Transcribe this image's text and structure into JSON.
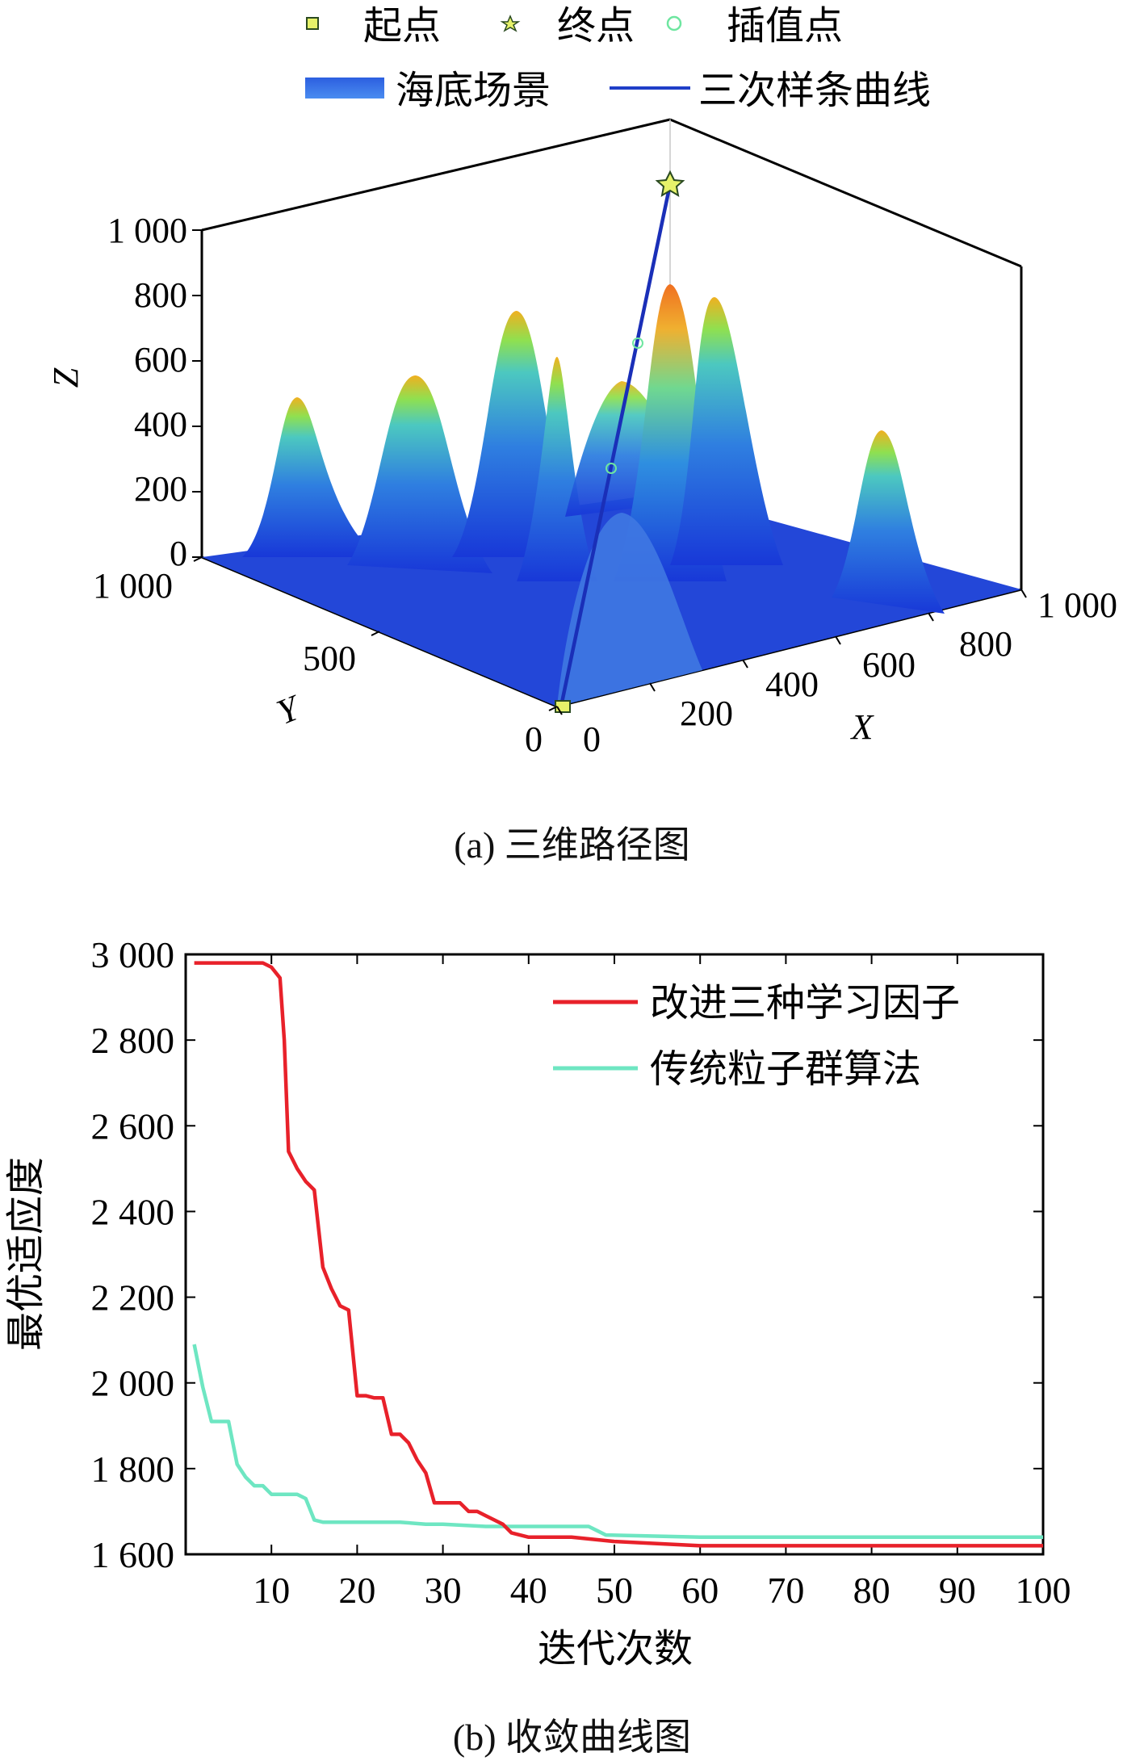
{
  "figure_a": {
    "caption": "(a) 三维路径图",
    "legend": [
      {
        "label": "起点",
        "marker": "square",
        "color": "#e6f26a",
        "edge": "#2a4a20"
      },
      {
        "label": "终点",
        "marker": "star",
        "color": "#e6f26a",
        "edge": "#2a4a20"
      },
      {
        "label": "插值点",
        "marker": "circle",
        "color": "#6ee6a0",
        "edge": "#6ee6a0"
      },
      {
        "label": "海底场景",
        "marker": "patch",
        "color": "#3a6fe0"
      },
      {
        "label": "三次样条曲线",
        "marker": "line",
        "color": "#1f3fc8"
      }
    ],
    "axes": {
      "xlabel": "X",
      "ylabel": "Y",
      "zlabel": "Z",
      "x_ticks": [
        "0",
        "200",
        "400",
        "600",
        "800",
        "1 000"
      ],
      "y_ticks": [
        "0",
        "500",
        "1 000"
      ],
      "z_ticks": [
        "0",
        "200",
        "400",
        "600",
        "800",
        "1 000"
      ]
    }
  },
  "chart_data": {
    "type": "line",
    "title": "",
    "caption": "(b) 收敛曲线图",
    "xlabel": "迭代次数",
    "ylabel": "最优适应度",
    "xlim": [
      0,
      100
    ],
    "ylim": [
      1600,
      3000
    ],
    "x_ticks": [
      10,
      20,
      30,
      40,
      50,
      60,
      70,
      80,
      90,
      100
    ],
    "x_tick_labels": [
      "10",
      "20",
      "30",
      "40",
      "50",
      "60",
      "70",
      "80",
      "90",
      "100"
    ],
    "y_ticks": [
      1600,
      1800,
      2000,
      2200,
      2400,
      2600,
      2800,
      3000
    ],
    "y_tick_labels": [
      "1 600",
      "1 800",
      "2 000",
      "2 200",
      "2 400",
      "2 600",
      "2 800",
      "3 000"
    ],
    "legend_position": "top-right",
    "series": [
      {
        "name": "改进三种学习因子",
        "color": "#e8212a",
        "points": [
          [
            1,
            2980
          ],
          [
            9,
            2980
          ],
          [
            10,
            2970
          ],
          [
            11,
            2945
          ],
          [
            11.5,
            2800
          ],
          [
            12,
            2540
          ],
          [
            13,
            2500
          ],
          [
            14,
            2470
          ],
          [
            15,
            2450
          ],
          [
            16,
            2270
          ],
          [
            17,
            2220
          ],
          [
            18,
            2180
          ],
          [
            19,
            2170
          ],
          [
            20,
            1970
          ],
          [
            21,
            1970
          ],
          [
            22,
            1965
          ],
          [
            23,
            1965
          ],
          [
            24,
            1880
          ],
          [
            25,
            1880
          ],
          [
            26,
            1860
          ],
          [
            27,
            1820
          ],
          [
            28,
            1790
          ],
          [
            29,
            1720
          ],
          [
            30,
            1720
          ],
          [
            32,
            1720
          ],
          [
            33,
            1700
          ],
          [
            34,
            1700
          ],
          [
            35,
            1690
          ],
          [
            36,
            1680
          ],
          [
            37,
            1670
          ],
          [
            38,
            1650
          ],
          [
            40,
            1640
          ],
          [
            45,
            1640
          ],
          [
            50,
            1630
          ],
          [
            55,
            1625
          ],
          [
            60,
            1620
          ],
          [
            100,
            1620
          ]
        ]
      },
      {
        "name": "传统粒子群算法",
        "color": "#6ee6c2",
        "points": [
          [
            1,
            2090
          ],
          [
            2,
            1990
          ],
          [
            3,
            1910
          ],
          [
            4,
            1910
          ],
          [
            5,
            1910
          ],
          [
            6,
            1810
          ],
          [
            7,
            1780
          ],
          [
            8,
            1760
          ],
          [
            9,
            1760
          ],
          [
            10,
            1740
          ],
          [
            11,
            1740
          ],
          [
            12,
            1740
          ],
          [
            13,
            1740
          ],
          [
            14,
            1730
          ],
          [
            15,
            1680
          ],
          [
            16,
            1675
          ],
          [
            20,
            1675
          ],
          [
            25,
            1675
          ],
          [
            28,
            1670
          ],
          [
            30,
            1670
          ],
          [
            35,
            1665
          ],
          [
            40,
            1665
          ],
          [
            47,
            1665
          ],
          [
            48,
            1655
          ],
          [
            49,
            1645
          ],
          [
            60,
            1640
          ],
          [
            100,
            1640
          ]
        ]
      }
    ]
  }
}
